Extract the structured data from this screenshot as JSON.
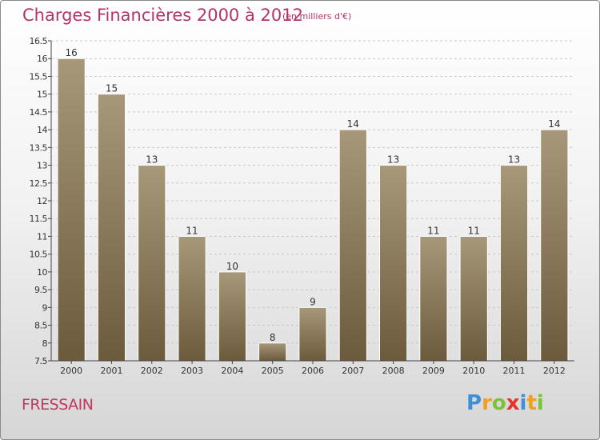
{
  "header": {
    "title": "Charges Financières 2000 à 2012",
    "subtitle": "(en milliers d'€)"
  },
  "commune": "FRESSAIN",
  "logo": {
    "text": "Proxiti",
    "letters": [
      {
        "char": "P",
        "color": "#3d8fd6"
      },
      {
        "char": "r",
        "color": "#f0a020"
      },
      {
        "char": "o",
        "color": "#7cc23a"
      },
      {
        "char": "x",
        "color": "#e5342b"
      },
      {
        "char": "i",
        "color": "#3d8fd6"
      },
      {
        "char": "t",
        "color": "#f0a020"
      },
      {
        "char": "i",
        "color": "#7cc23a"
      }
    ]
  },
  "colors": {
    "bar_top": "#a8987a",
    "bar_bottom": "#6b5a3c",
    "grid": "#c8c8c8",
    "axis": "#444444",
    "text": "#333333"
  },
  "chart_data": {
    "type": "bar",
    "categories": [
      "2000",
      "2001",
      "2002",
      "2003",
      "2004",
      "2005",
      "2006",
      "2007",
      "2008",
      "2009",
      "2010",
      "2011",
      "2012"
    ],
    "values": [
      16,
      15,
      13,
      11,
      10,
      8,
      9,
      14,
      13,
      11,
      11,
      13,
      14
    ],
    "data_labels": [
      "16",
      "15",
      "13",
      "11",
      "10",
      "8",
      "9",
      "14",
      "13",
      "11",
      "11",
      "13",
      "14"
    ],
    "title": "Charges Financières 2000 à 2012",
    "subtitle": "(en milliers d'€)",
    "xlabel": "",
    "ylabel": "",
    "ylim": [
      7.5,
      16.5
    ],
    "yticks": [
      7.5,
      8,
      8.5,
      9,
      9.5,
      10,
      10.5,
      11,
      11.5,
      12,
      12.5,
      13,
      13.5,
      14,
      14.5,
      15,
      15.5,
      16,
      16.5
    ],
    "ytick_labels": [
      "7.5",
      "8",
      "8.5",
      "9",
      "9.5",
      "10",
      "10.5",
      "11",
      "11.5",
      "12",
      "12.5",
      "13",
      "13.5",
      "14",
      "14.5",
      "15",
      "15.5",
      "16",
      "16.5"
    ],
    "grid": true,
    "legend": "none"
  }
}
